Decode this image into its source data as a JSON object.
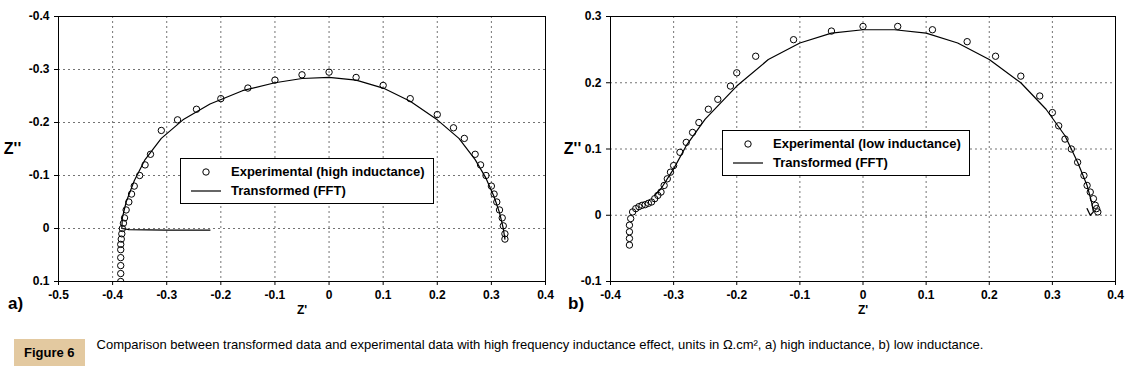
{
  "chart_data": [
    {
      "type": "scatter",
      "panel_label": "a)",
      "x_label": "Z'",
      "y_label": "Z''",
      "xlim": [
        -0.5,
        0.4
      ],
      "xticks": [
        -0.5,
        -0.4,
        -0.3,
        -0.2,
        -0.1,
        0,
        0.1,
        0.2,
        0.3,
        0.4
      ],
      "ylim": [
        0.1,
        -0.4
      ],
      "yticks": [
        -0.4,
        -0.3,
        -0.2,
        -0.1,
        0,
        0.1
      ],
      "grid": true,
      "legend": "center",
      "series": [
        {
          "name": "Experimental (high inductance)",
          "type": "scatter",
          "marker": "circle",
          "color": "#000000",
          "x": [
            -0.385,
            -0.385,
            -0.385,
            -0.385,
            -0.385,
            -0.385,
            -0.384,
            -0.383,
            -0.382,
            -0.38,
            -0.378,
            -0.375,
            -0.37,
            -0.365,
            -0.36,
            -0.35,
            -0.34,
            -0.33,
            -0.31,
            -0.28,
            -0.245,
            -0.2,
            -0.15,
            -0.1,
            -0.05,
            0,
            0.05,
            0.1,
            0.15,
            0.2,
            0.23,
            0.25,
            0.27,
            0.28,
            0.29,
            0.3,
            0.305,
            0.31,
            0.315,
            0.32,
            0.322,
            0.325,
            0.325
          ],
          "values": [
            0.1,
            0.085,
            0.07,
            0.055,
            0.04,
            0.03,
            0.02,
            0.01,
            0.0,
            -0.01,
            -0.02,
            -0.035,
            -0.05,
            -0.065,
            -0.08,
            -0.1,
            -0.12,
            -0.14,
            -0.185,
            -0.205,
            -0.225,
            -0.245,
            -0.265,
            -0.28,
            -0.29,
            -0.295,
            -0.285,
            -0.27,
            -0.245,
            -0.215,
            -0.19,
            -0.17,
            -0.14,
            -0.12,
            -0.1,
            -0.08,
            -0.065,
            -0.05,
            -0.035,
            -0.02,
            -0.005,
            0.01,
            0.02
          ]
        },
        {
          "name": "Transformed (FFT)",
          "type": "line",
          "line_style": "solid",
          "color": "#000000",
          "x": [
            -0.22,
            -0.3,
            -0.37,
            -0.383,
            -0.382,
            -0.375,
            -0.36,
            -0.34,
            -0.31,
            -0.27,
            -0.22,
            -0.16,
            -0.1,
            -0.05,
            0,
            0.05,
            0.1,
            0.15,
            0.2,
            0.24,
            0.27,
            0.29,
            0.305,
            0.315,
            0.322,
            0.325
          ],
          "values": [
            0.003,
            0.003,
            0.002,
            0.0,
            -0.02,
            -0.05,
            -0.09,
            -0.13,
            -0.17,
            -0.205,
            -0.235,
            -0.26,
            -0.275,
            -0.283,
            -0.285,
            -0.28,
            -0.265,
            -0.24,
            -0.205,
            -0.17,
            -0.13,
            -0.095,
            -0.06,
            -0.03,
            0.0,
            0.02
          ]
        }
      ]
    },
    {
      "type": "scatter",
      "panel_label": "b)",
      "x_label": "Z'",
      "y_label": "Z''",
      "xlim": [
        -0.4,
        0.4
      ],
      "xticks": [
        -0.4,
        -0.3,
        -0.2,
        -0.1,
        0,
        0.1,
        0.2,
        0.3,
        0.4
      ],
      "ylim": [
        -0.1,
        0.3
      ],
      "yticks": [
        -0.1,
        0,
        0.1,
        0.2,
        0.3
      ],
      "grid": true,
      "legend": "center",
      "series": [
        {
          "name": "Experimental (low inductance)",
          "type": "scatter",
          "marker": "circle",
          "color": "#000000",
          "x": [
            -0.37,
            -0.37,
            -0.37,
            -0.37,
            -0.368,
            -0.365,
            -0.36,
            -0.355,
            -0.35,
            -0.345,
            -0.34,
            -0.335,
            -0.33,
            -0.325,
            -0.32,
            -0.315,
            -0.31,
            -0.305,
            -0.3,
            -0.29,
            -0.28,
            -0.27,
            -0.26,
            -0.245,
            -0.23,
            -0.21,
            -0.2,
            -0.17,
            -0.11,
            -0.05,
            0,
            0.055,
            0.11,
            0.165,
            0.21,
            0.25,
            0.28,
            0.3,
            0.31,
            0.32,
            0.33,
            0.34,
            0.35,
            0.355,
            0.36,
            0.365,
            0.368,
            0.37,
            0.372
          ],
          "values": [
            -0.045,
            -0.035,
            -0.025,
            -0.015,
            -0.005,
            0.005,
            0.01,
            0.013,
            0.015,
            0.016,
            0.018,
            0.02,
            0.025,
            0.03,
            0.035,
            0.045,
            0.055,
            0.065,
            0.075,
            0.095,
            0.11,
            0.125,
            0.14,
            0.16,
            0.175,
            0.195,
            0.215,
            0.24,
            0.265,
            0.278,
            0.285,
            0.285,
            0.28,
            0.262,
            0.24,
            0.21,
            0.18,
            0.155,
            0.135,
            0.115,
            0.1,
            0.08,
            0.06,
            0.045,
            0.035,
            0.025,
            0.015,
            0.01,
            0.005
          ]
        },
        {
          "name": "Transformed (FFT)",
          "type": "line",
          "line_style": "solid",
          "color": "#000000",
          "x": [
            -0.33,
            -0.32,
            -0.3,
            -0.28,
            -0.25,
            -0.2,
            -0.15,
            -0.1,
            -0.05,
            0,
            0.05,
            0.1,
            0.15,
            0.2,
            0.25,
            0.29,
            0.32,
            0.34,
            0.355,
            0.362,
            0.365,
            0.36,
            0.355
          ],
          "values": [
            0.03,
            0.04,
            0.07,
            0.105,
            0.145,
            0.195,
            0.235,
            0.26,
            0.275,
            0.28,
            0.28,
            0.275,
            0.26,
            0.235,
            0.2,
            0.16,
            0.12,
            0.08,
            0.045,
            0.02,
            0.005,
            0.0,
            0.01
          ]
        }
      ]
    }
  ],
  "figure_label": "Figure 6",
  "caption": "Comparison between transformed data and experimental data with high frequency inductance effect, units in Ω.cm², a) high inductance, b) low inductance."
}
